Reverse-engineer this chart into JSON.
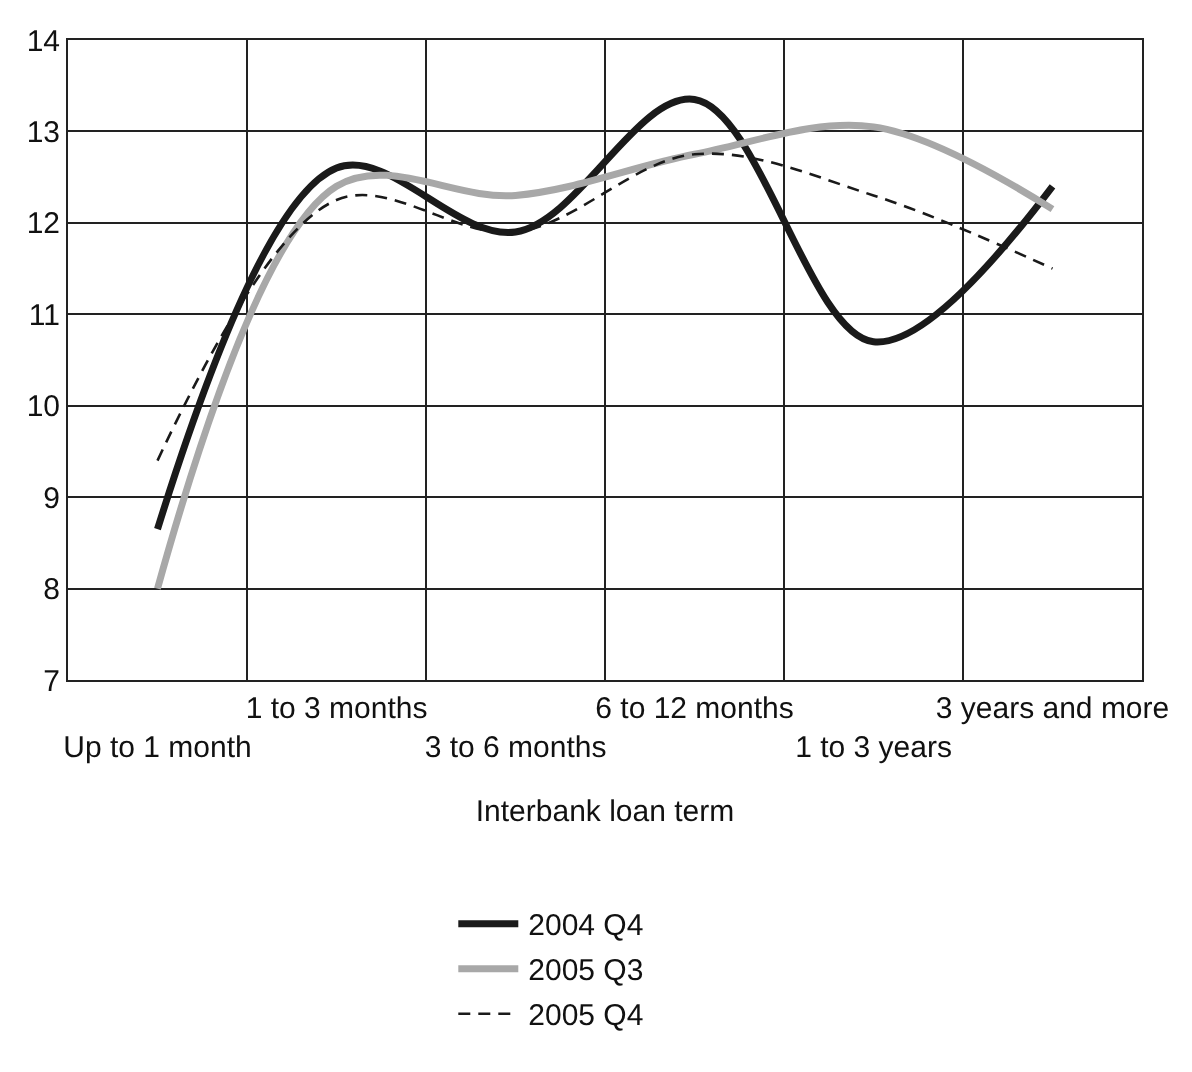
{
  "chart_data": {
    "type": "line",
    "xlabel": "Interbank loan term",
    "categories": [
      "Up to 1 month",
      "1 to 3 months",
      "3 to 6 months",
      "6 to 12 months",
      "1 to 3 years",
      "3 years and more"
    ],
    "series": [
      {
        "name": "2004 Q4",
        "color": "#1a1a1a",
        "line_style": "solid",
        "values": [
          8.65,
          12.6,
          11.9,
          13.35,
          10.7,
          12.4
        ]
      },
      {
        "name": "2005 Q3",
        "color": "#a8a8a8",
        "line_style": "solid",
        "values": [
          8.0,
          12.4,
          12.3,
          12.75,
          13.05,
          12.15
        ]
      },
      {
        "name": "2005 Q4",
        "color": "#1a1a1a",
        "line_style": "dashed",
        "values": [
          9.4,
          12.25,
          11.9,
          12.75,
          12.3,
          11.5
        ]
      }
    ],
    "ylim": [
      7,
      14
    ],
    "yticks": [
      7,
      8,
      9,
      10,
      11,
      12,
      13,
      14
    ],
    "grid": true,
    "legend": "bottom",
    "marker": "none"
  }
}
